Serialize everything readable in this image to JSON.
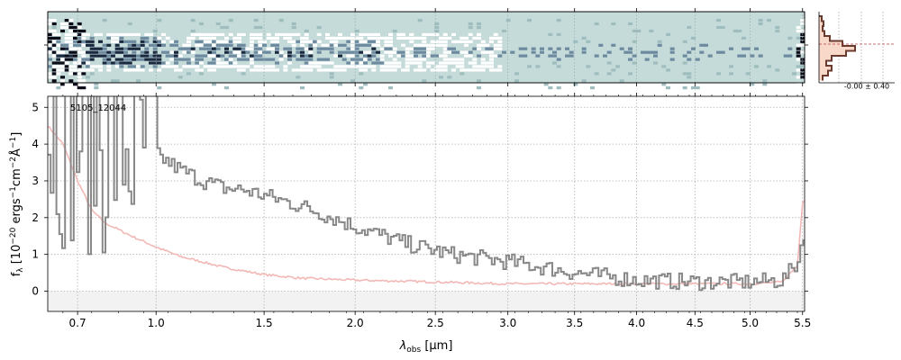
{
  "chart_data": {
    "type": "line",
    "object_label": "5105_12044",
    "xlabel_symbol": "λ",
    "xlabel_sub": "obs",
    "xlabel_unit": " [μm]",
    "ylabel": "f_λ [10^-20 ergs^-1 cm^-2 Å^-1]",
    "ylabel_parts": {
      "f": "f",
      "sub": "λ",
      "a": " [10",
      "e1": "−20",
      "b": " ergs",
      "e2": "−1",
      "c": "cm",
      "e3": "−2",
      "d": "Å",
      "e4": "−1",
      "end": "]"
    },
    "xlim": [
      0.6,
      5.52
    ],
    "ylim": [
      -0.55,
      5.3
    ],
    "xscale": "sqrt",
    "grid": true,
    "x_ticks": [
      0.7,
      1.0,
      1.5,
      2.0,
      2.5,
      3.0,
      3.5,
      4.0,
      4.5,
      5.0,
      5.5
    ],
    "x_tick_labels": [
      "0.7",
      "1.0",
      "1.5",
      "2.0",
      "2.5",
      "3.0",
      "3.5",
      "4.0",
      "4.5",
      "5.0",
      "5.5"
    ],
    "y_ticks": [
      0,
      1,
      2,
      3,
      4,
      5
    ],
    "y_tick_labels": [
      "0",
      "1",
      "2",
      "3",
      "4",
      "5"
    ],
    "series": [
      {
        "role": "spectrum",
        "color": "#888888",
        "x": [
          0.6,
          0.7,
          0.8,
          0.9,
          1.0,
          1.1,
          1.2,
          1.3,
          1.4,
          1.5,
          1.7,
          2.0,
          2.3,
          2.6,
          3.0,
          3.5,
          4.0,
          4.5,
          5.0,
          5.3,
          5.45,
          5.5
        ],
        "y": [
          4.8,
          4.5,
          4.3,
          4.1,
          3.7,
          3.3,
          3.0,
          2.8,
          2.75,
          2.6,
          2.3,
          1.75,
          1.3,
          1.0,
          0.8,
          0.5,
          0.3,
          0.25,
          0.25,
          0.3,
          0.8,
          1.6
        ]
      },
      {
        "role": "model",
        "color": "#f2b8b5",
        "x": [
          0.6,
          0.65,
          0.7,
          0.75,
          0.8,
          0.9,
          1.0,
          1.1,
          1.2,
          1.3,
          1.5,
          1.7,
          2.0,
          2.5,
          3.0,
          3.5,
          4.0,
          4.5,
          5.0,
          5.3,
          5.45,
          5.5
        ],
        "y": [
          4.5,
          4.0,
          3.0,
          2.2,
          1.85,
          1.5,
          1.2,
          0.95,
          0.8,
          0.65,
          0.45,
          0.35,
          0.3,
          0.25,
          0.2,
          0.2,
          0.2,
          0.2,
          0.2,
          0.25,
          0.7,
          2.45
        ]
      }
    ],
    "inset": {
      "label": "-0.00 ± 0.40"
    },
    "colors": {
      "spectrum": "#888888",
      "model": "#f2b8b5",
      "twod_background": "#c4dbd9",
      "hist_fill": "#f8d8c8",
      "hist_line": "#6b3a2e"
    }
  }
}
